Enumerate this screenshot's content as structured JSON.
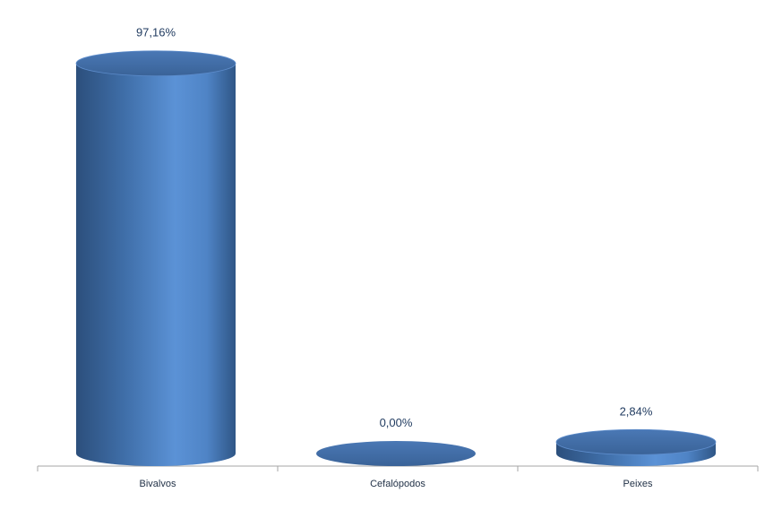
{
  "chart_data": {
    "type": "bar",
    "categories": [
      "Bivalvos",
      "Cefalópodos",
      "Peixes"
    ],
    "values": [
      97.16,
      0.0,
      2.84
    ],
    "data_labels": [
      "97,16%",
      "0,00%",
      "2,84%"
    ],
    "title": "",
    "xlabel": "",
    "ylabel": "",
    "ylim": [
      0,
      100
    ],
    "grid": false,
    "legend": "none",
    "style": "3d-cylinder",
    "colors": {
      "cylinder_dark": "#2f5584",
      "cylinder_mid": "#4a7fc4",
      "cylinder_light": "#5c93d8",
      "cylinder_top": "#3f6aa5",
      "axis": "#a6a6a6",
      "label_text": "#1f3a5f"
    }
  }
}
